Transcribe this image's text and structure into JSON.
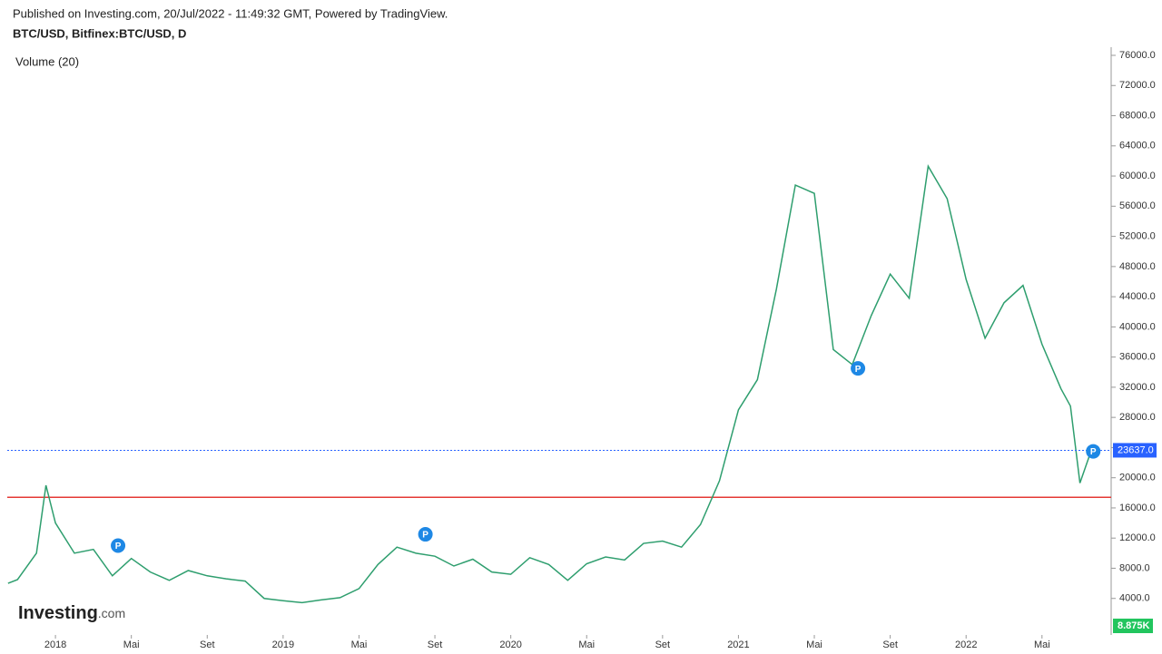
{
  "header": {
    "published": "Published on Investing.com, 20/Jul/2022 - 11:49:32 GMT, Powered by TradingView.",
    "symbol": "BTC/USD, Bitfinex:BTC/USD, D",
    "indicator": "Volume (20)",
    "logo": "Investing",
    "logo_suffix": ".com"
  },
  "chart_data": {
    "type": "line",
    "x": [
      -2.5,
      -2,
      -1,
      -0.5,
      0,
      1,
      2,
      3,
      4,
      5,
      6,
      7,
      8,
      9,
      10,
      11,
      12,
      13,
      14,
      15,
      16,
      17,
      18,
      19,
      20,
      21,
      22,
      23,
      24,
      25,
      26,
      27,
      28,
      29,
      30,
      31,
      32,
      33,
      34,
      35,
      36,
      37,
      38,
      39,
      40,
      41,
      42,
      43,
      44,
      45,
      46,
      47,
      48,
      49,
      50,
      51,
      52,
      53,
      53.5,
      54,
      54.6
    ],
    "series": [
      {
        "name": "BTC/USD",
        "color": "#2e9e6e",
        "values": [
          6000,
          6500,
          10000,
          19000,
          14000,
          10000,
          10500,
          7000,
          9300,
          7500,
          6400,
          7700,
          7000,
          6600,
          6300,
          4000,
          3700,
          3450,
          3800,
          4100,
          5300,
          8500,
          10800,
          10000,
          9600,
          8300,
          9200,
          7500,
          7200,
          9400,
          8500,
          6400,
          8600,
          9500,
          9100,
          11300,
          11600,
          10800,
          13800,
          19600,
          29000,
          33000,
          45000,
          58800,
          57700,
          37000,
          35000,
          41500,
          47000,
          43800,
          61300,
          57000,
          46300,
          38500,
          43200,
          45500,
          37700,
          31800,
          29500,
          19300,
          23637
        ]
      }
    ],
    "xlim": [
      -2.54,
      55.55
    ],
    "ylim": [
      0,
      77000
    ],
    "xticks": [
      {
        "value": 0,
        "label": "2018"
      },
      {
        "value": 4,
        "label": "Mai"
      },
      {
        "value": 8,
        "label": "Set"
      },
      {
        "value": 12,
        "label": "2019"
      },
      {
        "value": 16,
        "label": "Mai"
      },
      {
        "value": 20,
        "label": "Set"
      },
      {
        "value": 24,
        "label": "2020"
      },
      {
        "value": 28,
        "label": "Mai"
      },
      {
        "value": 32,
        "label": "Set"
      },
      {
        "value": 36,
        "label": "2021"
      },
      {
        "value": 40,
        "label": "Mai"
      },
      {
        "value": 44,
        "label": "Set"
      },
      {
        "value": 48,
        "label": "2022"
      },
      {
        "value": 52,
        "label": "Mai"
      }
    ],
    "yticks": [
      {
        "value": 4000,
        "label": "4000.0"
      },
      {
        "value": 8000,
        "label": "8000.0"
      },
      {
        "value": 12000,
        "label": "12000.0"
      },
      {
        "value": 16000,
        "label": "16000.0"
      },
      {
        "value": 20000,
        "label": "20000.0"
      },
      {
        "value": 24000,
        "label": "24000.0"
      },
      {
        "value": 28000,
        "label": "28000.0"
      },
      {
        "value": 32000,
        "label": "32000.0"
      },
      {
        "value": 36000,
        "label": "36000.0"
      },
      {
        "value": 40000,
        "label": "40000.0"
      },
      {
        "value": 44000,
        "label": "44000.0"
      },
      {
        "value": 48000,
        "label": "48000.0"
      },
      {
        "value": 52000,
        "label": "52000.0"
      },
      {
        "value": 56000,
        "label": "56000.0"
      },
      {
        "value": 60000,
        "label": "60000.0"
      },
      {
        "value": 64000,
        "label": "64000.0"
      },
      {
        "value": 68000,
        "label": "68000.0"
      },
      {
        "value": 72000,
        "label": "72000.0"
      },
      {
        "value": 76000,
        "label": "76000.0"
      }
    ],
    "last_price": {
      "value": 23637,
      "label": "23637.0"
    },
    "support_level": 17400,
    "volume_last": "8.875K",
    "markers": [
      {
        "x": 3.3,
        "y": 11000,
        "label": "P"
      },
      {
        "x": 19.5,
        "y": 12500,
        "label": "P"
      },
      {
        "x": 42.3,
        "y": 34500,
        "label": "P"
      },
      {
        "x": 54.7,
        "y": 23500,
        "label": "P"
      }
    ]
  }
}
